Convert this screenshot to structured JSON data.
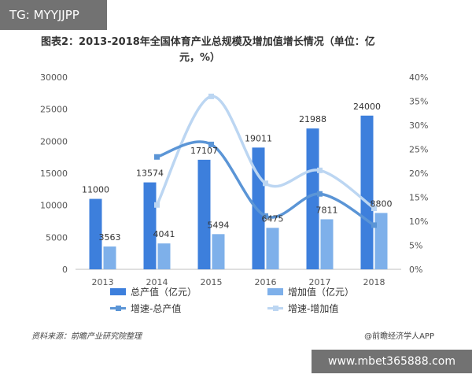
{
  "overlay_tag": "TG: MYYJJPP",
  "title_line1": "图表2：2013-2018年全国体育产业总规模及增加值增长情况（单位：亿",
  "title_line2": "元，%）",
  "source": "资料来源：前瞻产业研究院整理",
  "brand": "@前瞻经济学人APP",
  "overlay_url": "www.mbet365888.com",
  "chart_data": {
    "type": "bar",
    "categories": [
      "2013",
      "2014",
      "2015",
      "2016",
      "2017",
      "2018"
    ],
    "series": [
      {
        "name": "总产值（亿元）",
        "type": "bar",
        "axis": "left",
        "color": "#3d7fdc",
        "values": [
          11000,
          13574,
          17107,
          19011,
          21988,
          24000
        ]
      },
      {
        "name": "增加值（亿元）",
        "type": "bar",
        "axis": "left",
        "color": "#7eb0ea",
        "values": [
          3563,
          4041,
          5494,
          6475,
          7811,
          8800
        ]
      },
      {
        "name": "增速-总产值",
        "type": "line",
        "axis": "right",
        "color": "#5b95d6",
        "values": [
          null,
          23.4,
          26.0,
          11.1,
          15.7,
          9.2
        ]
      },
      {
        "name": "增速-增加值",
        "type": "line",
        "axis": "right",
        "color": "#bcd6f2",
        "values": [
          null,
          13.4,
          36.0,
          17.9,
          20.6,
          12.7
        ]
      }
    ],
    "left_axis": {
      "min": 0,
      "max": 30000,
      "ticks": [
        "0",
        "5000",
        "10000",
        "15000",
        "20000",
        "25000",
        "30000"
      ]
    },
    "right_axis": {
      "min": 0,
      "max": 40,
      "ticks": [
        "0%",
        "5%",
        "10%",
        "15%",
        "20%",
        "25%",
        "30%",
        "35%",
        "40%"
      ]
    },
    "bar_labels_total": [
      "11000",
      "13574",
      "17107",
      "19011",
      "21988",
      "24000"
    ],
    "bar_labels_added": [
      "3563",
      "4041",
      "5494",
      "6475",
      "7811",
      "8800"
    ],
    "legend": [
      {
        "label": "总产值（亿元）",
        "kind": "bar",
        "color": "#3d7fdc"
      },
      {
        "label": "增加值（亿元）",
        "kind": "bar",
        "color": "#7eb0ea"
      },
      {
        "label": "增速-总产值",
        "kind": "line",
        "color": "#5b95d6"
      },
      {
        "label": "增速-增加值",
        "kind": "line",
        "color": "#bcd6f2"
      }
    ],
    "legend_position": "bottom",
    "grid": false
  }
}
